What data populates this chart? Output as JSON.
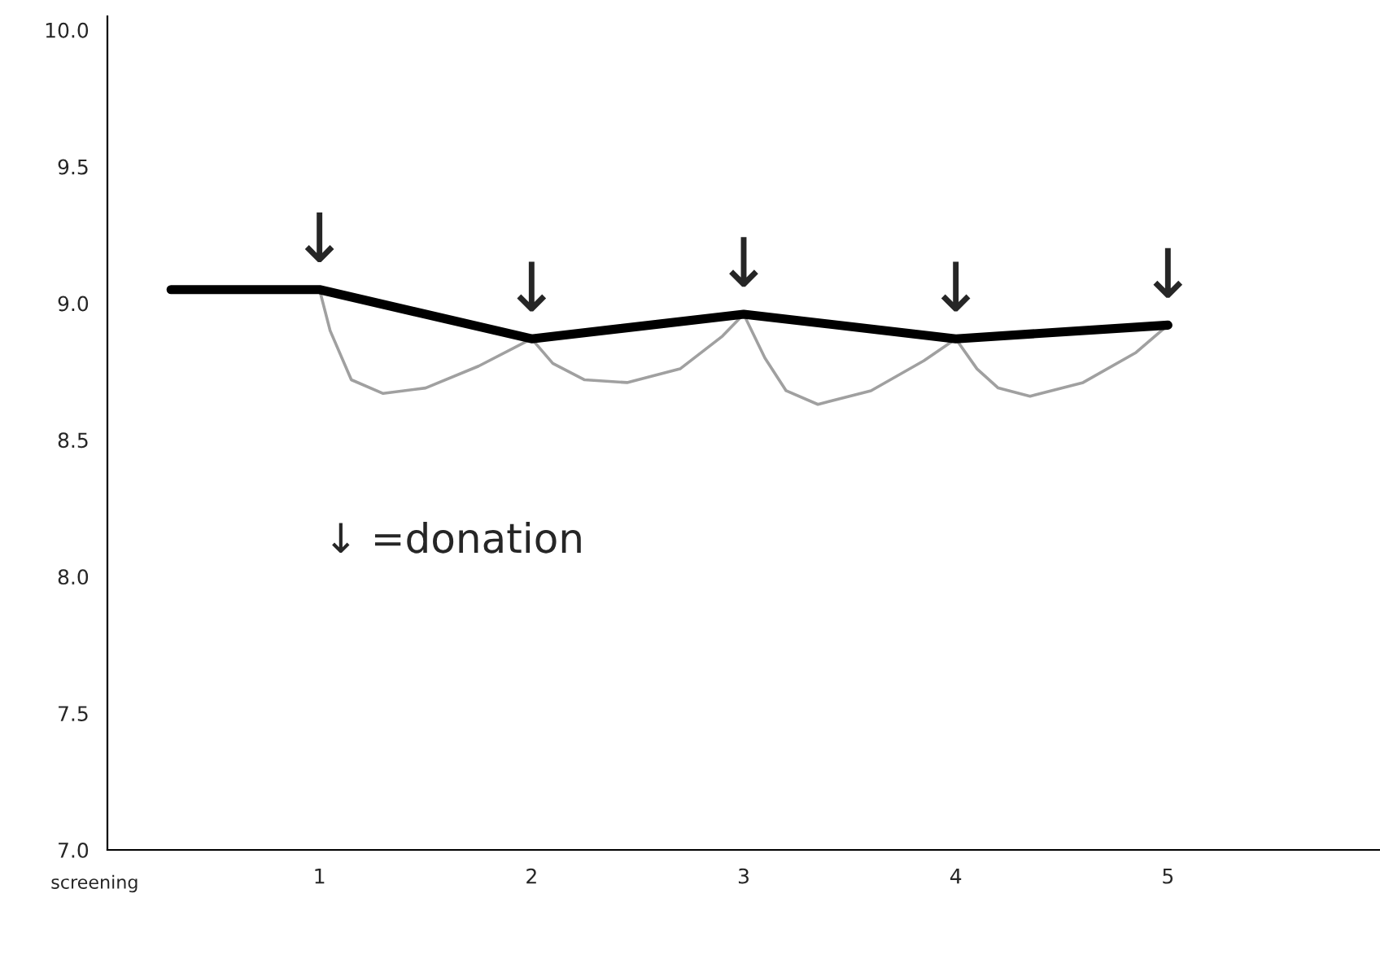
{
  "chart_data": {
    "type": "line",
    "xlabel": "screening",
    "xlim": [
      0,
      6
    ],
    "xticks": [
      1,
      2,
      3,
      4,
      5
    ],
    "ylim": [
      7.0,
      10.05
    ],
    "yticks": [
      {
        "value": 7.0,
        "label": "7.0"
      },
      {
        "value": 7.5,
        "label": "7.5"
      },
      {
        "value": 8.0,
        "label": "8.0"
      },
      {
        "value": 8.5,
        "label": "8.5"
      },
      {
        "value": 9.0,
        "label": "9.0"
      },
      {
        "value": 9.5,
        "label": "9.5"
      },
      {
        "value": 10.0,
        "label": "10.0"
      }
    ],
    "grid": false,
    "legend": false,
    "marker": "none",
    "line_style": "solid",
    "series": [
      {
        "color": "#a0a0a0",
        "x": [
          1,
          1.05,
          1.15,
          1.3,
          1.5,
          1.75,
          2,
          2.1,
          2.25,
          2.45,
          2.7,
          2.9,
          3,
          3.1,
          3.2,
          3.35,
          3.6,
          3.85,
          4,
          4.1,
          4.2,
          4.35,
          4.6,
          4.85,
          5
        ],
        "values": [
          9.05,
          8.9,
          8.72,
          8.67,
          8.69,
          8.77,
          8.87,
          8.78,
          8.72,
          8.71,
          8.76,
          8.88,
          8.96,
          8.8,
          8.68,
          8.63,
          8.68,
          8.79,
          8.87,
          8.76,
          8.69,
          8.66,
          8.71,
          8.82,
          8.92
        ]
      },
      {
        "color": "#000000",
        "x": [
          0.3,
          1,
          2,
          3,
          4,
          5
        ],
        "values": [
          9.05,
          9.05,
          8.87,
          8.96,
          8.87,
          8.92
        ]
      }
    ],
    "annotations": [
      {
        "text": "↓",
        "x": 1,
        "y": 9.05
      },
      {
        "text": "↓",
        "x": 2,
        "y": 8.87
      },
      {
        "text": "↓",
        "x": 3,
        "y": 8.96
      },
      {
        "text": "↓",
        "x": 4,
        "y": 8.87
      },
      {
        "text": "↓",
        "x": 5,
        "y": 8.92
      },
      "↓ =donation"
    ]
  }
}
